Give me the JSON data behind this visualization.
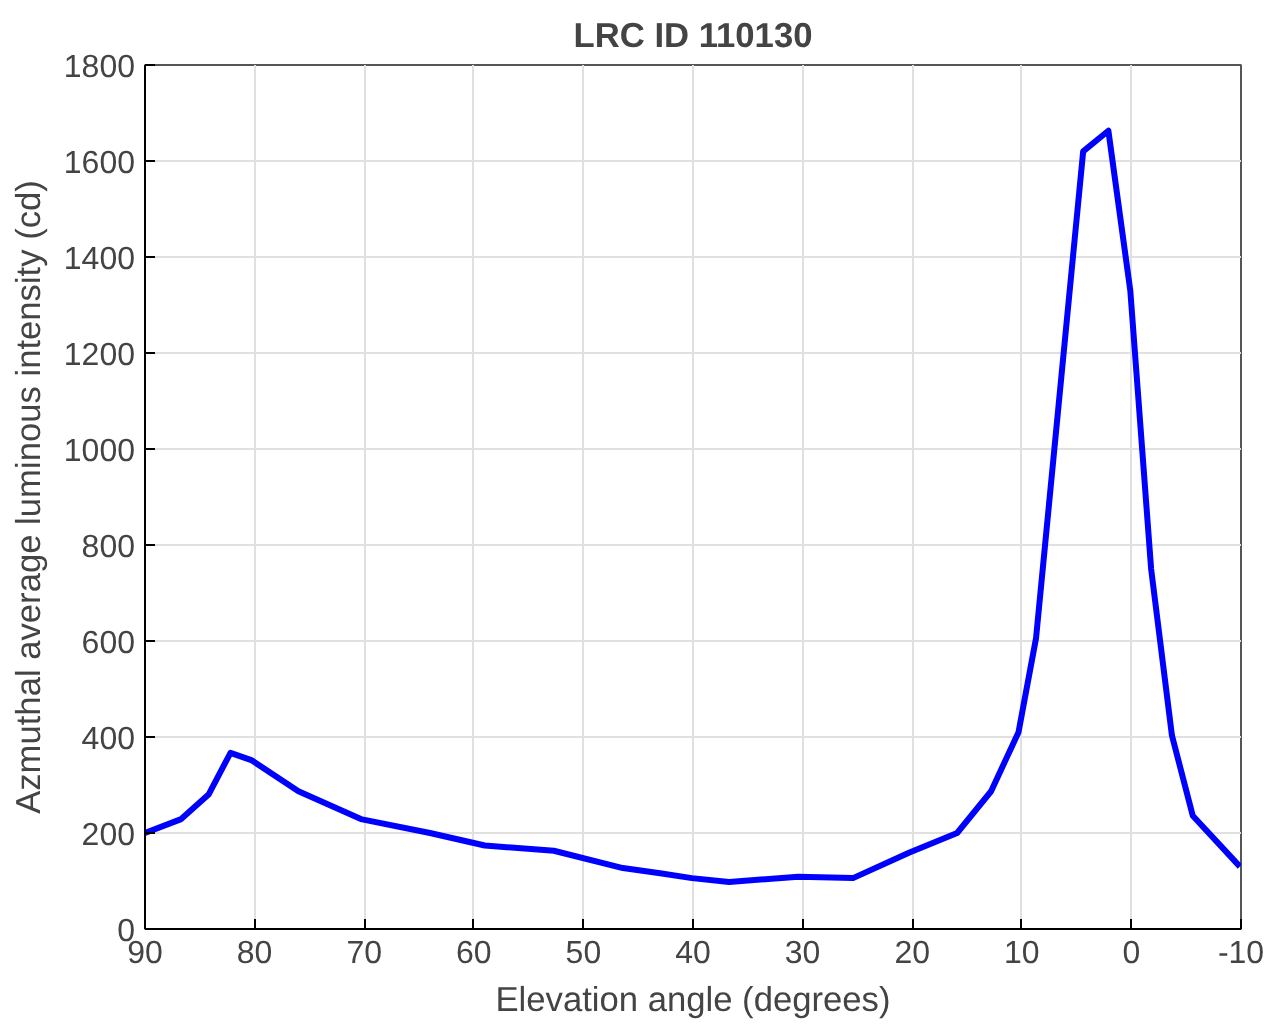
{
  "chart_data": {
    "type": "line",
    "title": "LRC ID 110130",
    "xlabel": "Elevation angle (degrees)",
    "ylabel": "Azmuthal average luminous intensity (cd)",
    "x": [
      90,
      86.7,
      84.2,
      82.2,
      80.3,
      76.0,
      70.3,
      64.0,
      59.0,
      52.7,
      46.4,
      43.0,
      40.1,
      36.7,
      30.4,
      25.4,
      20.3,
      15.9,
      12.8,
      10.3,
      8.7,
      4.4,
      2.1,
      0.1,
      -1.8,
      -3.7,
      -5.6,
      -9.9
    ],
    "series": [
      {
        "color": "#0000ff",
        "values": [
          200,
          229,
          280,
          367,
          352,
          287,
          229,
          200,
          174,
          163,
          127,
          116,
          106,
          98,
          109,
          106,
          159,
          200,
          287,
          410,
          606,
          1620,
          1663,
          1330,
          750,
          403,
          236,
          130
        ]
      }
    ],
    "xlim": [
      90,
      -10
    ],
    "xticks": [
      90,
      80,
      70,
      60,
      50,
      40,
      30,
      20,
      10,
      0,
      -10
    ],
    "ylim": [
      0,
      1800
    ],
    "yticks": [
      0,
      200,
      400,
      600,
      800,
      1000,
      1200,
      1400,
      1600,
      1800
    ],
    "grid": true,
    "marker": "none",
    "line_style": "solid"
  }
}
